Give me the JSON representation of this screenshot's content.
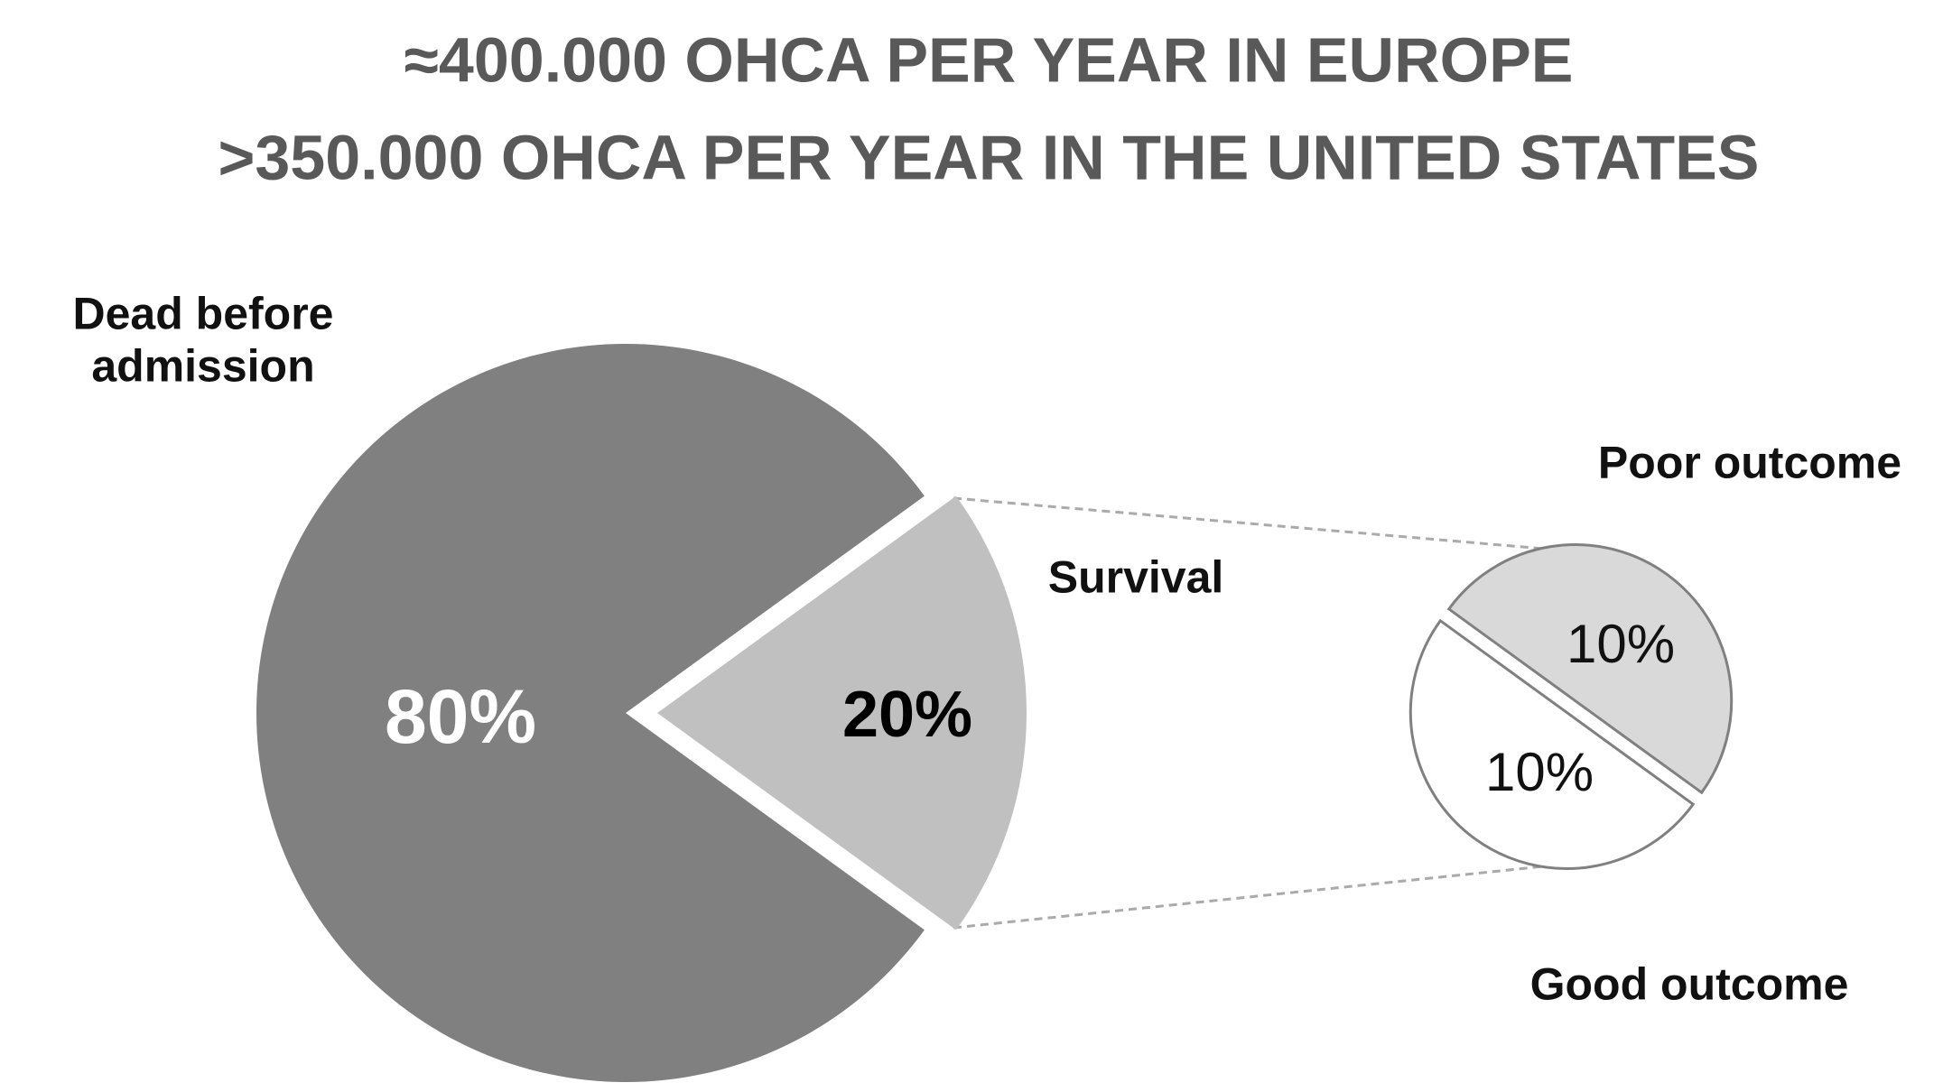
{
  "chart_data": [
    {
      "type": "pie",
      "title": "≈400.000 OHCA PER YEAR IN EUROPE",
      "subtitle": ">350.000 OHCA PER YEAR IN THE UNITED STATES",
      "categories": [
        "Dead before admission",
        "Survival"
      ],
      "values": [
        80,
        20
      ],
      "value_labels": [
        "80%",
        "20%"
      ],
      "colors": [
        "#808080",
        "#c0c0c0"
      ]
    },
    {
      "type": "pie",
      "categories": [
        "Poor outcome",
        "Good outcome"
      ],
      "values": [
        10,
        10
      ],
      "value_labels": [
        "10%",
        "10%"
      ],
      "colors": [
        "#d9d9d9",
        "#ffffff"
      ]
    }
  ]
}
